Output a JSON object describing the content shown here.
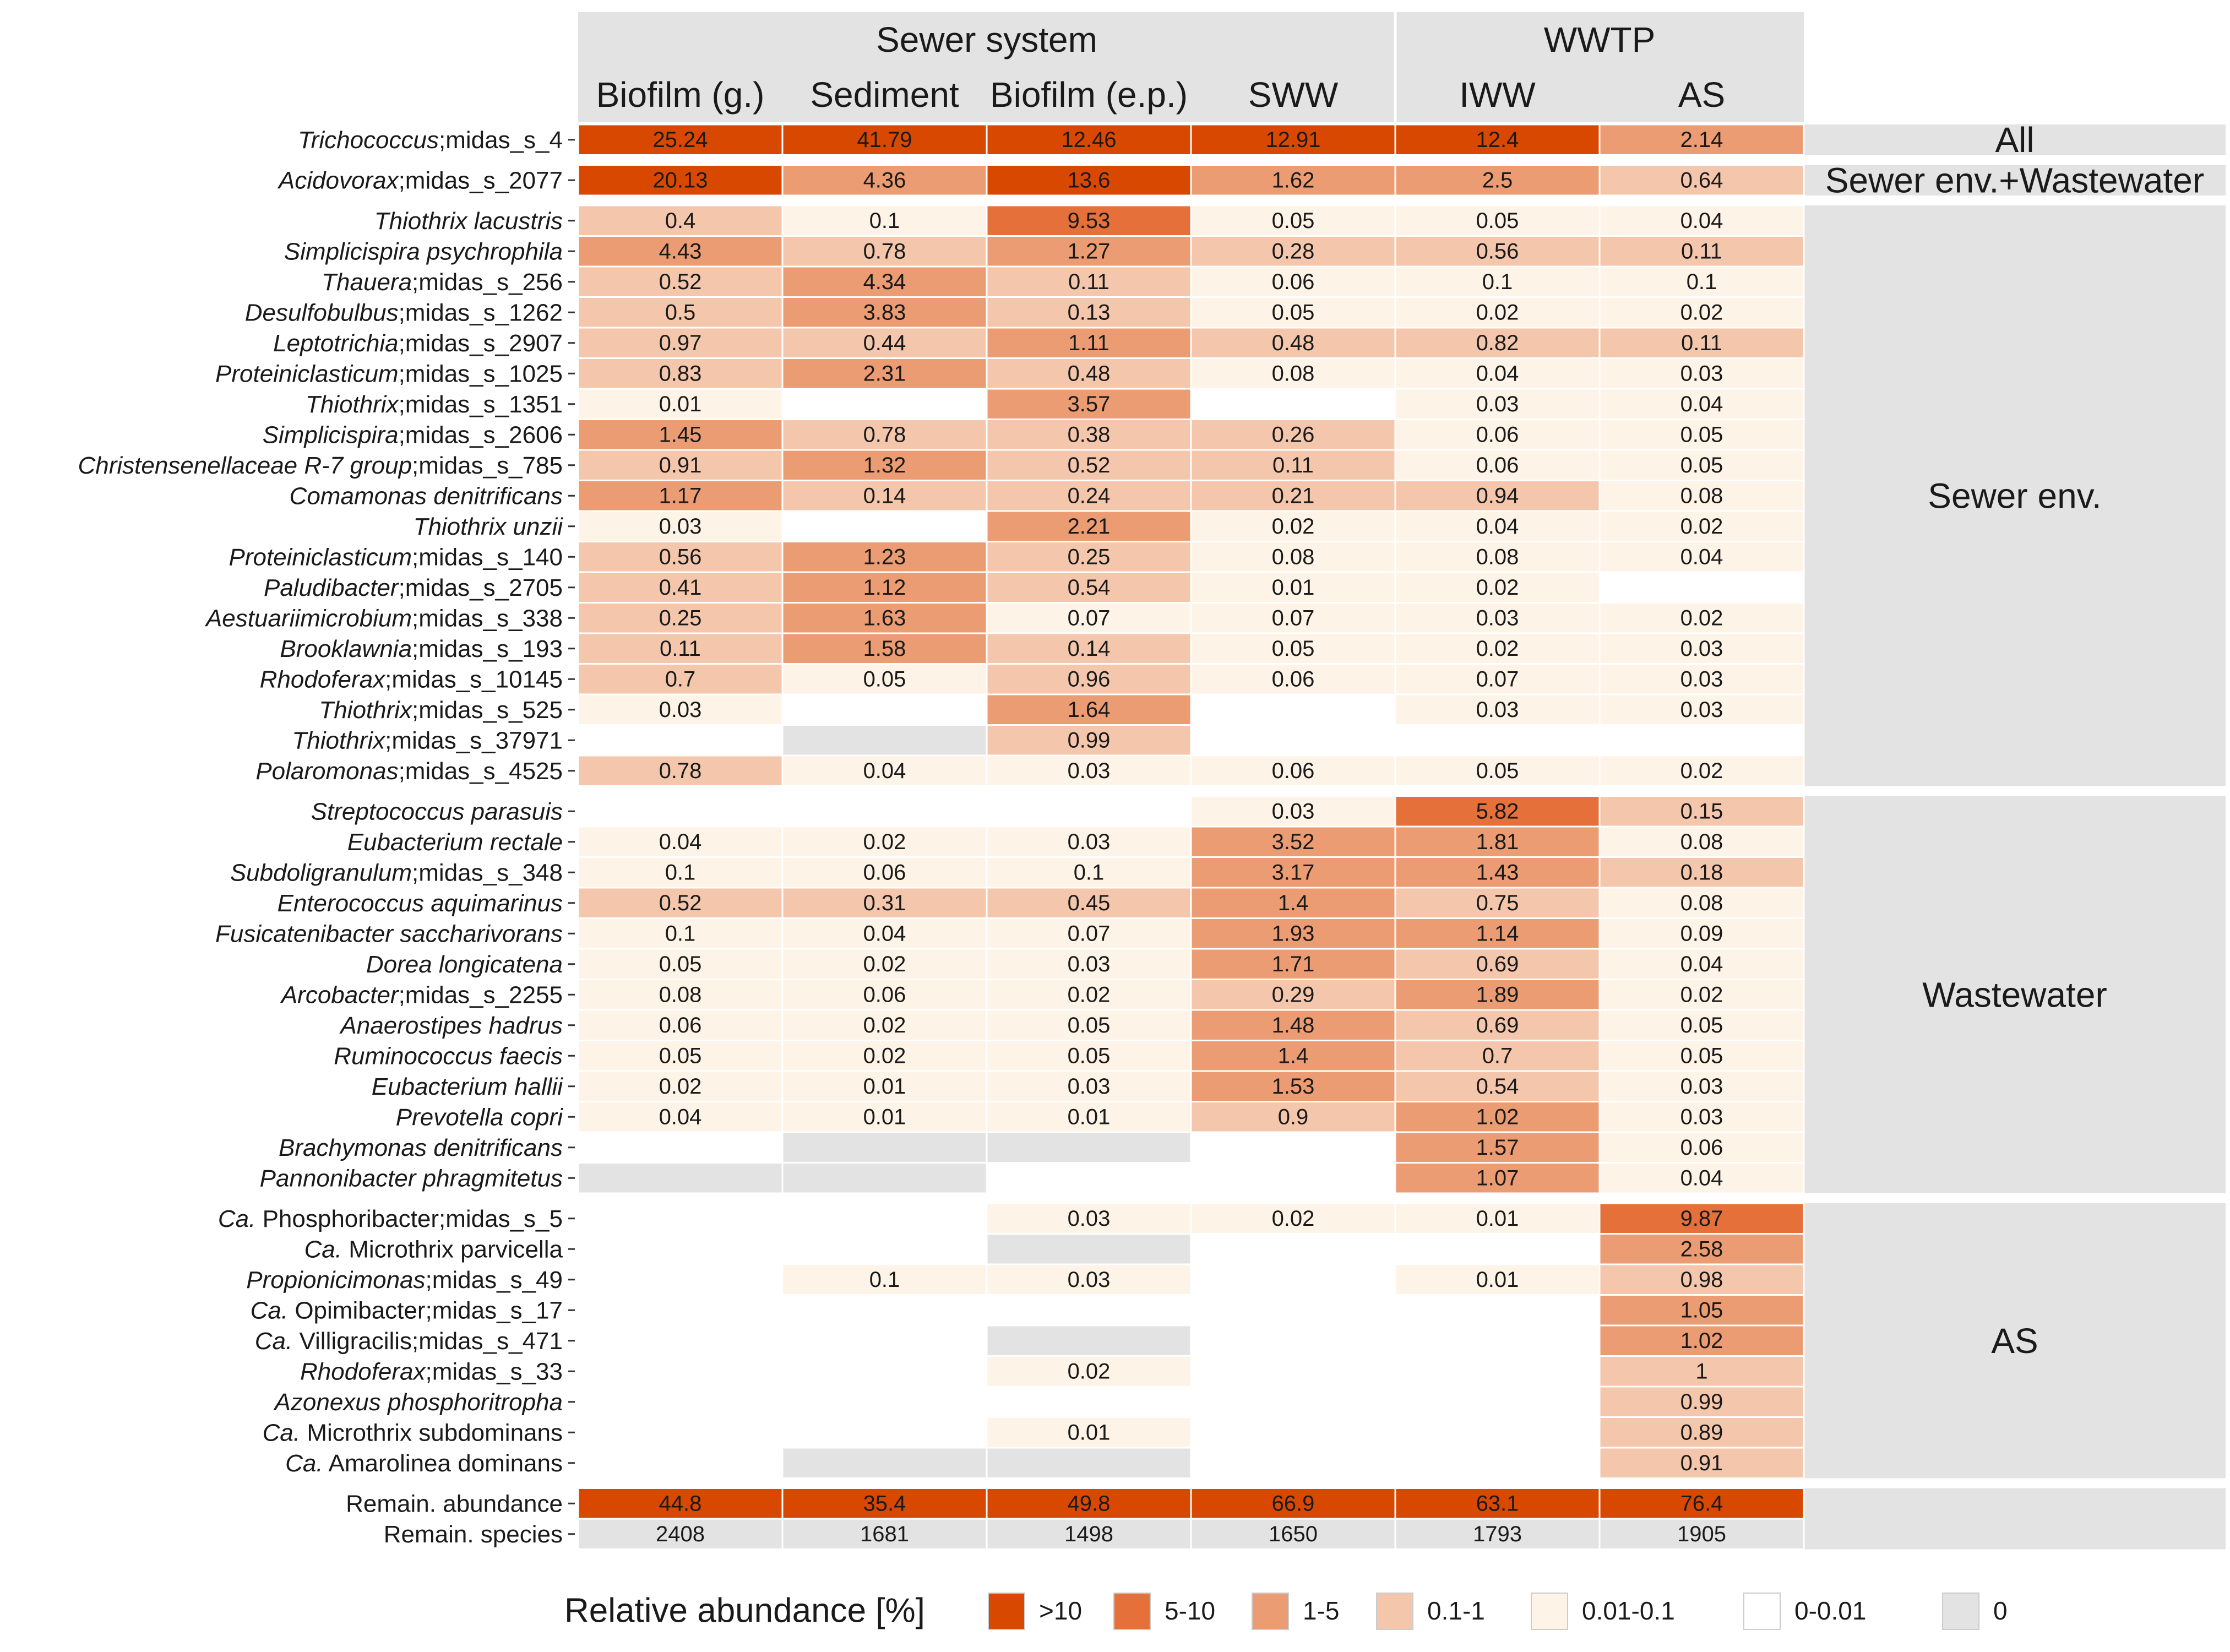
{
  "chart_data": {
    "type": "heatmap",
    "group_headers": [
      "Sewer system",
      "WWTP"
    ],
    "columns": [
      "Biofilm (g.)",
      "Sediment",
      "Biofilm (e.p.)",
      "SWW",
      "IWW",
      "AS"
    ],
    "legend": {
      "title": "Relative abundance [%]",
      "items": [
        {
          "label": ">10",
          "color": "#D94801"
        },
        {
          "label": "5-10",
          "color": "#E5703A"
        },
        {
          "label": "1-5",
          "color": "#EC9C72"
        },
        {
          "label": "0.1-1",
          "color": "#F4C7AC"
        },
        {
          "label": "0.01-0.1",
          "color": "#FEF3E7"
        },
        {
          "label": "0-0.01",
          "color": "#FFFFFF"
        },
        {
          "label": "0",
          "color": "#E3E3E3"
        }
      ]
    },
    "sections": [
      {
        "label": "All",
        "rows": [
          {
            "parts": [
              {
                "t": "Trichococcus",
                "i": true
              },
              {
                "t": ";midas_s_4",
                "i": false
              }
            ],
            "values": [
              "25.24",
              "41.79",
              "12.46",
              "12.91",
              "12.4",
              "2.14"
            ]
          }
        ]
      },
      {
        "label": "Sewer env.+Wastewater",
        "rows": [
          {
            "parts": [
              {
                "t": "Acidovorax",
                "i": true
              },
              {
                "t": ";midas_s_2077",
                "i": false
              }
            ],
            "values": [
              "20.13",
              "4.36",
              "13.6",
              "1.62",
              "2.5",
              "0.64"
            ]
          }
        ]
      },
      {
        "label": "Sewer env.",
        "rows": [
          {
            "parts": [
              {
                "t": "Thiothrix lacustris",
                "i": true
              }
            ],
            "values": [
              "0.4",
              "0.1",
              "9.53",
              "0.05",
              "0.05",
              "0.04"
            ]
          },
          {
            "parts": [
              {
                "t": "Simplicispira psychrophila",
                "i": true
              }
            ],
            "values": [
              "4.43",
              "0.78",
              "1.27",
              "0.28",
              "0.56",
              "0.11"
            ]
          },
          {
            "parts": [
              {
                "t": "Thauera",
                "i": true
              },
              {
                "t": ";midas_s_256",
                "i": false
              }
            ],
            "values": [
              "0.52",
              "4.34",
              "0.11",
              "0.06",
              "0.1",
              "0.1"
            ]
          },
          {
            "parts": [
              {
                "t": "Desulfobulbus",
                "i": true
              },
              {
                "t": ";midas_s_1262",
                "i": false
              }
            ],
            "values": [
              "0.5",
              "3.83",
              "0.13",
              "0.05",
              "0.02",
              "0.02"
            ]
          },
          {
            "parts": [
              {
                "t": "Leptotrichia",
                "i": true
              },
              {
                "t": ";midas_s_2907",
                "i": false
              }
            ],
            "values": [
              "0.97",
              "0.44",
              "1.11",
              "0.48",
              "0.82",
              "0.11"
            ]
          },
          {
            "parts": [
              {
                "t": "Proteiniclasticum",
                "i": true
              },
              {
                "t": ";midas_s_1025",
                "i": false
              }
            ],
            "values": [
              "0.83",
              "2.31",
              "0.48",
              "0.08",
              "0.04",
              "0.03"
            ]
          },
          {
            "parts": [
              {
                "t": "Thiothrix",
                "i": true
              },
              {
                "t": ";midas_s_1351",
                "i": false
              }
            ],
            "values": [
              "0.01",
              "<0.01",
              "3.57",
              "<0.01",
              "0.03",
              "0.04"
            ]
          },
          {
            "parts": [
              {
                "t": "Simplicispira",
                "i": true
              },
              {
                "t": ";midas_s_2606",
                "i": false
              }
            ],
            "values": [
              "1.45",
              "0.78",
              "0.38",
              "0.26",
              "0.06",
              "0.05"
            ]
          },
          {
            "parts": [
              {
                "t": "Christensenellaceae R-7 group",
                "i": true
              },
              {
                "t": ";midas_s_785",
                "i": false
              }
            ],
            "values": [
              "0.91",
              "1.32",
              "0.52",
              "0.11",
              "0.06",
              "0.05"
            ]
          },
          {
            "parts": [
              {
                "t": "Comamonas denitrificans",
                "i": true
              }
            ],
            "values": [
              "1.17",
              "0.14",
              "0.24",
              "0.21",
              "0.94",
              "0.08"
            ]
          },
          {
            "parts": [
              {
                "t": "Thiothrix unzii",
                "i": true
              }
            ],
            "values": [
              "0.03",
              "<0.01",
              "2.21",
              "0.02",
              "0.04",
              "0.02"
            ]
          },
          {
            "parts": [
              {
                "t": "Proteiniclasticum",
                "i": true
              },
              {
                "t": ";midas_s_140",
                "i": false
              }
            ],
            "values": [
              "0.56",
              "1.23",
              "0.25",
              "0.08",
              "0.08",
              "0.04"
            ]
          },
          {
            "parts": [
              {
                "t": "Paludibacter",
                "i": true
              },
              {
                "t": ";midas_s_2705",
                "i": false
              }
            ],
            "values": [
              "0.41",
              "1.12",
              "0.54",
              "0.01",
              "0.02",
              "<0.01"
            ]
          },
          {
            "parts": [
              {
                "t": "Aestuariimicrobium",
                "i": true
              },
              {
                "t": ";midas_s_338",
                "i": false
              }
            ],
            "values": [
              "0.25",
              "1.63",
              "0.07",
              "0.07",
              "0.03",
              "0.02"
            ]
          },
          {
            "parts": [
              {
                "t": "Brooklawnia",
                "i": true
              },
              {
                "t": ";midas_s_193",
                "i": false
              }
            ],
            "values": [
              "0.11",
              "1.58",
              "0.14",
              "0.05",
              "0.02",
              "0.03"
            ]
          },
          {
            "parts": [
              {
                "t": "Rhodoferax",
                "i": true
              },
              {
                "t": ";midas_s_10145",
                "i": false
              }
            ],
            "values": [
              "0.7",
              "0.05",
              "0.96",
              "0.06",
              "0.07",
              "0.03"
            ]
          },
          {
            "parts": [
              {
                "t": "Thiothrix",
                "i": true
              },
              {
                "t": ";midas_s_525",
                "i": false
              }
            ],
            "values": [
              "0.03",
              "<0.01",
              "1.64",
              "<0.01",
              "0.03",
              "0.03"
            ]
          },
          {
            "parts": [
              {
                "t": "Thiothrix",
                "i": true
              },
              {
                "t": ";midas_s_37971",
                "i": false
              }
            ],
            "values": [
              "<0.01",
              "0",
              "0.99",
              "<0.01",
              "<0.01",
              "<0.01"
            ]
          },
          {
            "parts": [
              {
                "t": "Polaromonas",
                "i": true
              },
              {
                "t": ";midas_s_4525",
                "i": false
              }
            ],
            "values": [
              "0.78",
              "0.04",
              "0.03",
              "0.06",
              "0.05",
              "0.02"
            ]
          }
        ]
      },
      {
        "label": "Wastewater",
        "rows": [
          {
            "parts": [
              {
                "t": "Streptococcus parasuis",
                "i": true
              }
            ],
            "values": [
              "<0.01",
              "<0.01",
              "<0.01",
              "0.03",
              "5.82",
              "0.15"
            ]
          },
          {
            "parts": [
              {
                "t": "Eubacterium rectale",
                "i": true
              }
            ],
            "values": [
              "0.04",
              "0.02",
              "0.03",
              "3.52",
              "1.81",
              "0.08"
            ]
          },
          {
            "parts": [
              {
                "t": "Subdoligranulum",
                "i": true
              },
              {
                "t": ";midas_s_348",
                "i": false
              }
            ],
            "values": [
              "0.1",
              "0.06",
              "0.1",
              "3.17",
              "1.43",
              "0.18"
            ]
          },
          {
            "parts": [
              {
                "t": "Enterococcus aquimarinus",
                "i": true
              }
            ],
            "values": [
              "0.52",
              "0.31",
              "0.45",
              "1.4",
              "0.75",
              "0.08"
            ]
          },
          {
            "parts": [
              {
                "t": "Fusicatenibacter saccharivorans",
                "i": true
              }
            ],
            "values": [
              "0.1",
              "0.04",
              "0.07",
              "1.93",
              "1.14",
              "0.09"
            ]
          },
          {
            "parts": [
              {
                "t": "Dorea longicatena",
                "i": true
              }
            ],
            "values": [
              "0.05",
              "0.02",
              "0.03",
              "1.71",
              "0.69",
              "0.04"
            ]
          },
          {
            "parts": [
              {
                "t": "Arcobacter",
                "i": true
              },
              {
                "t": ";midas_s_2255",
                "i": false
              }
            ],
            "values": [
              "0.08",
              "0.06",
              "0.02",
              "0.29",
              "1.89",
              "0.02"
            ]
          },
          {
            "parts": [
              {
                "t": "Anaerostipes hadrus",
                "i": true
              }
            ],
            "values": [
              "0.06",
              "0.02",
              "0.05",
              "1.48",
              "0.69",
              "0.05"
            ]
          },
          {
            "parts": [
              {
                "t": "Ruminococcus faecis",
                "i": true
              }
            ],
            "values": [
              "0.05",
              "0.02",
              "0.05",
              "1.4",
              "0.7",
              "0.05"
            ]
          },
          {
            "parts": [
              {
                "t": "Eubacterium hallii",
                "i": true
              }
            ],
            "values": [
              "0.02",
              "0.01",
              "0.03",
              "1.53",
              "0.54",
              "0.03"
            ]
          },
          {
            "parts": [
              {
                "t": "Prevotella copri",
                "i": true
              }
            ],
            "values": [
              "0.04",
              "0.01",
              "0.01",
              "0.9",
              "1.02",
              "0.03"
            ]
          },
          {
            "parts": [
              {
                "t": "Brachymonas denitrificans",
                "i": true
              }
            ],
            "values": [
              "<0.01",
              "0",
              "0",
              "<0.01",
              "1.57",
              "0.06"
            ]
          },
          {
            "parts": [
              {
                "t": "Pannonibacter phragmitetus",
                "i": true
              }
            ],
            "values": [
              "0",
              "0",
              "<0.01",
              "<0.01",
              "1.07",
              "0.04"
            ]
          }
        ]
      },
      {
        "label": "AS",
        "rows": [
          {
            "parts": [
              {
                "t": "Ca.",
                "i": true
              },
              {
                "t": " Phosphoribacter;midas_s_5",
                "i": false
              }
            ],
            "values": [
              "<0.01",
              "<0.01",
              "0.03",
              "0.02",
              "0.01",
              "9.87"
            ]
          },
          {
            "parts": [
              {
                "t": "Ca.",
                "i": true
              },
              {
                "t": " Microthrix parvicella",
                "i": false
              }
            ],
            "values": [
              "<0.01",
              "<0.01",
              "0",
              "<0.01",
              "<0.01",
              "2.58"
            ]
          },
          {
            "parts": [
              {
                "t": "Propionicimonas",
                "i": true
              },
              {
                "t": ";midas_s_49",
                "i": false
              }
            ],
            "values": [
              "<0.01",
              "0.1",
              "0.03",
              "<0.01",
              "0.01",
              "0.98"
            ]
          },
          {
            "parts": [
              {
                "t": "Ca.",
                "i": true
              },
              {
                "t": " Opimibacter;midas_s_17",
                "i": false
              }
            ],
            "values": [
              "<0.01",
              "<0.01",
              "<0.01",
              "<0.01",
              "<0.01",
              "1.05"
            ]
          },
          {
            "parts": [
              {
                "t": "Ca.",
                "i": true
              },
              {
                "t": " Villigracilis;midas_s_471",
                "i": false
              }
            ],
            "values": [
              "<0.01",
              "<0.01",
              "0",
              "<0.01",
              "<0.01",
              "1.02"
            ]
          },
          {
            "parts": [
              {
                "t": "Rhodoferax",
                "i": true
              },
              {
                "t": ";midas_s_33",
                "i": false
              }
            ],
            "values": [
              "<0.01",
              "<0.01",
              "0.02",
              "<0.01",
              "<0.01",
              "1"
            ]
          },
          {
            "parts": [
              {
                "t": "Azonexus phosphoritropha",
                "i": true
              }
            ],
            "values": [
              "<0.01",
              "<0.01",
              "<0.01",
              "<0.01",
              "<0.01",
              "0.99"
            ]
          },
          {
            "parts": [
              {
                "t": "Ca.",
                "i": true
              },
              {
                "t": " Microthrix subdominans",
                "i": false
              }
            ],
            "values": [
              "<0.01",
              "<0.01",
              "0.01",
              "<0.01",
              "<0.01",
              "0.89"
            ]
          },
          {
            "parts": [
              {
                "t": "Ca.",
                "i": true
              },
              {
                "t": " Amarolinea dominans",
                "i": false
              }
            ],
            "values": [
              "<0.01",
              "0",
              "0",
              "<0.01",
              "<0.01",
              "0.91"
            ]
          }
        ]
      },
      {
        "label": "",
        "rows": [
          {
            "parts": [
              {
                "t": "Remain. abundance",
                "i": false
              }
            ],
            "values": [
              "44.8",
              "35.4",
              "49.8",
              "66.9",
              "63.1",
              "76.4"
            ]
          },
          {
            "parts": [
              {
                "t": "Remain. species",
                "i": false
              }
            ],
            "values": [
              "2408",
              "1681",
              "1498",
              "1650",
              "1793",
              "1905"
            ],
            "count": true
          }
        ]
      }
    ]
  }
}
